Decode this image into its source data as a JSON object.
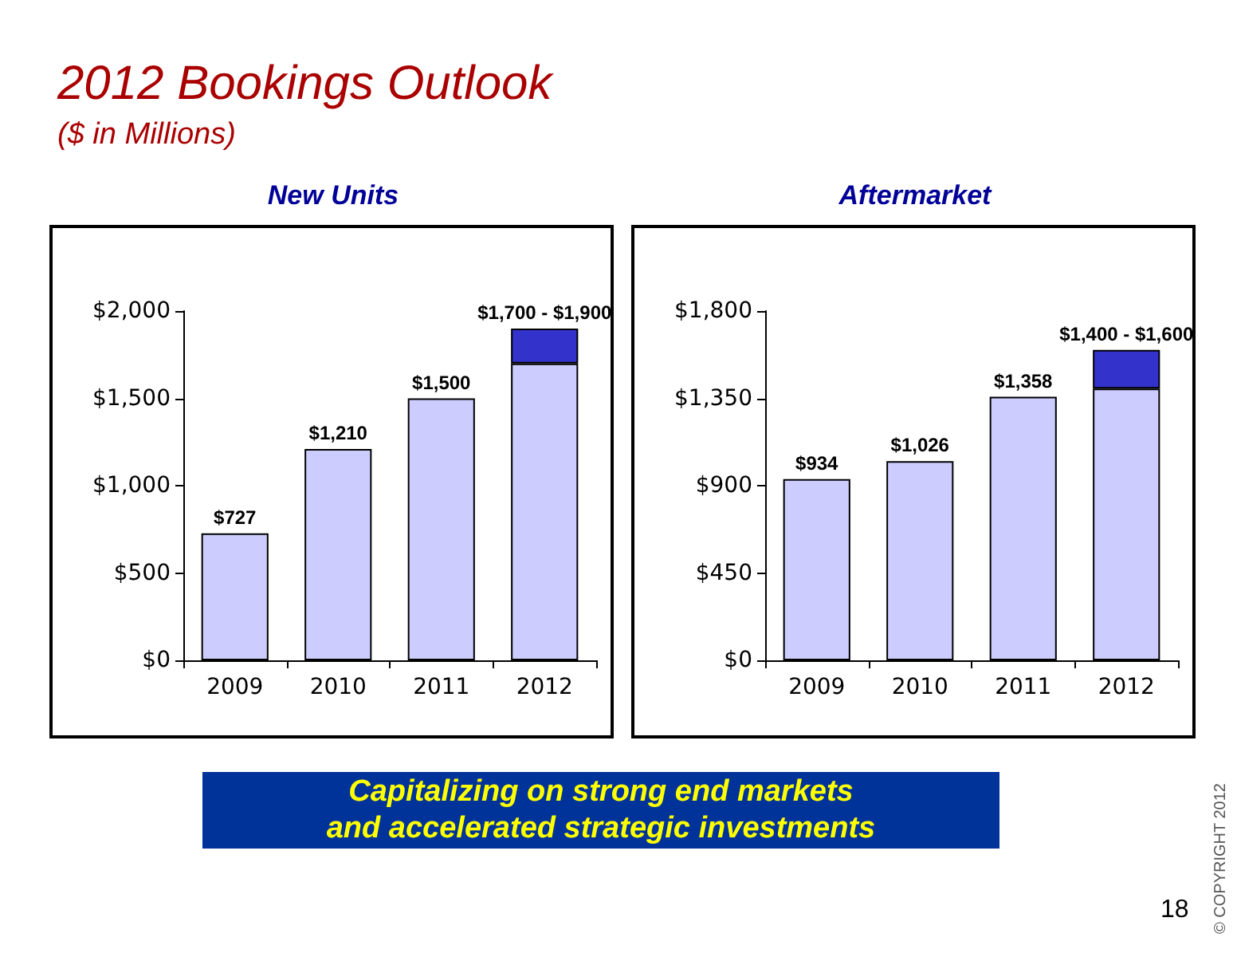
{
  "chart_data": [
    {
      "type": "bar",
      "title": "New Units",
      "annotations": [
        "2012 Bookings Outlook",
        "($ in Millions)",
        {
          "text": "$1,700 - $1,900",
          "x": "2012",
          "y": 1900
        }
      ],
      "categories": [
        "2009",
        "2010",
        "2011",
        "2012"
      ],
      "stacked": true,
      "series": [
        {
          "color": "#ccccff",
          "values": [
            727,
            1210,
            1500,
            1700
          ],
          "value_labels": [
            "$727",
            "$1,210",
            "$1,500",
            null
          ]
        },
        {
          "color": "#3333cc",
          "values": [
            null,
            null,
            null,
            200
          ]
        }
      ],
      "ylim": [
        0,
        2000
      ],
      "yticks": [
        {
          "value": 0,
          "label": "$0"
        },
        {
          "value": 500,
          "label": "$500"
        },
        {
          "value": 1000,
          "label": "$1,000"
        },
        {
          "value": 1500,
          "label": "$1,500"
        },
        {
          "value": 2000,
          "label": "$2,000"
        }
      ],
      "grid": false
    },
    {
      "type": "bar",
      "title": "Aftermarket",
      "annotations": [
        "Capitalizing on strong end markets\nand accelerated strategic investments",
        "© COPYRIGHT 2012",
        "18",
        {
          "text": "$1,400 - $1,600",
          "x": "2012",
          "y": 1600
        }
      ],
      "categories": [
        "2009",
        "2010",
        "2011",
        "2012"
      ],
      "stacked": true,
      "series": [
        {
          "color": "#ccccff",
          "values": [
            934,
            1026,
            1358,
            1400
          ],
          "value_labels": [
            "$934",
            "$1,026",
            "$1,358",
            null
          ]
        },
        {
          "color": "#3333cc",
          "values": [
            null,
            null,
            null,
            200
          ]
        }
      ],
      "ylim": [
        0,
        1800
      ],
      "yticks": [
        {
          "value": 0,
          "label": "$0"
        },
        {
          "value": 450,
          "label": "$450"
        },
        {
          "value": 900,
          "label": "$900"
        },
        {
          "value": 1350,
          "label": "$1,350"
        },
        {
          "value": 1800,
          "label": "$1,800"
        }
      ],
      "grid": false
    }
  ]
}
